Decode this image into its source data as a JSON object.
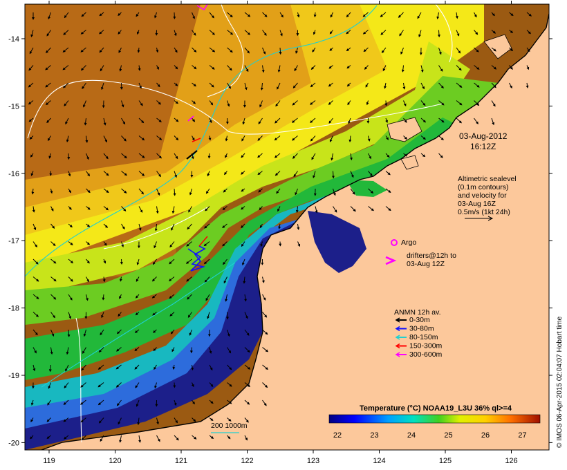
{
  "map": {
    "lon_ticks": [
      "119",
      "120",
      "121",
      "122",
      "123",
      "124",
      "125",
      "126"
    ],
    "lat_ticks": [
      "-14",
      "-15",
      "-16",
      "-17",
      "-18",
      "-19",
      "-20"
    ],
    "date_line1": "03-Aug-2012",
    "date_line2": "16:12Z",
    "altimetry_lines": [
      "Altimetric sealevel",
      "(0.1m contours)",
      "and velocity for",
      "03-Aug 16Z",
      "0.5m/s (1kt 24h)"
    ],
    "argo_label": "Argo",
    "drifters_line1": "drifters@12h to",
    "drifters_line2": "03-Aug 12Z",
    "anmn_title": "ANMN 12h av.",
    "anmn_items": [
      {
        "label": "0-30m",
        "color": "#000000"
      },
      {
        "label": "30-80m",
        "color": "#1010ff"
      },
      {
        "label": "80-150m",
        "color": "#20d0d0"
      },
      {
        "label": "150-300m",
        "color": "#ff0000"
      },
      {
        "label": "300-600m",
        "color": "#ff00ff"
      }
    ],
    "scale_bar_label": "200  1000m",
    "colorbar_title": "Temperature (°C) NOAA19_L3U 36% ql>=4",
    "colorbar_ticks": [
      "22",
      "23",
      "24",
      "25",
      "26",
      "27"
    ],
    "credit": "© IMOS 06-Apr-2015 02:04:07 Hobart time",
    "colors": {
      "land": "#fcc89b",
      "cold": "#1c1f8a",
      "warm": "#9c4a10"
    }
  }
}
